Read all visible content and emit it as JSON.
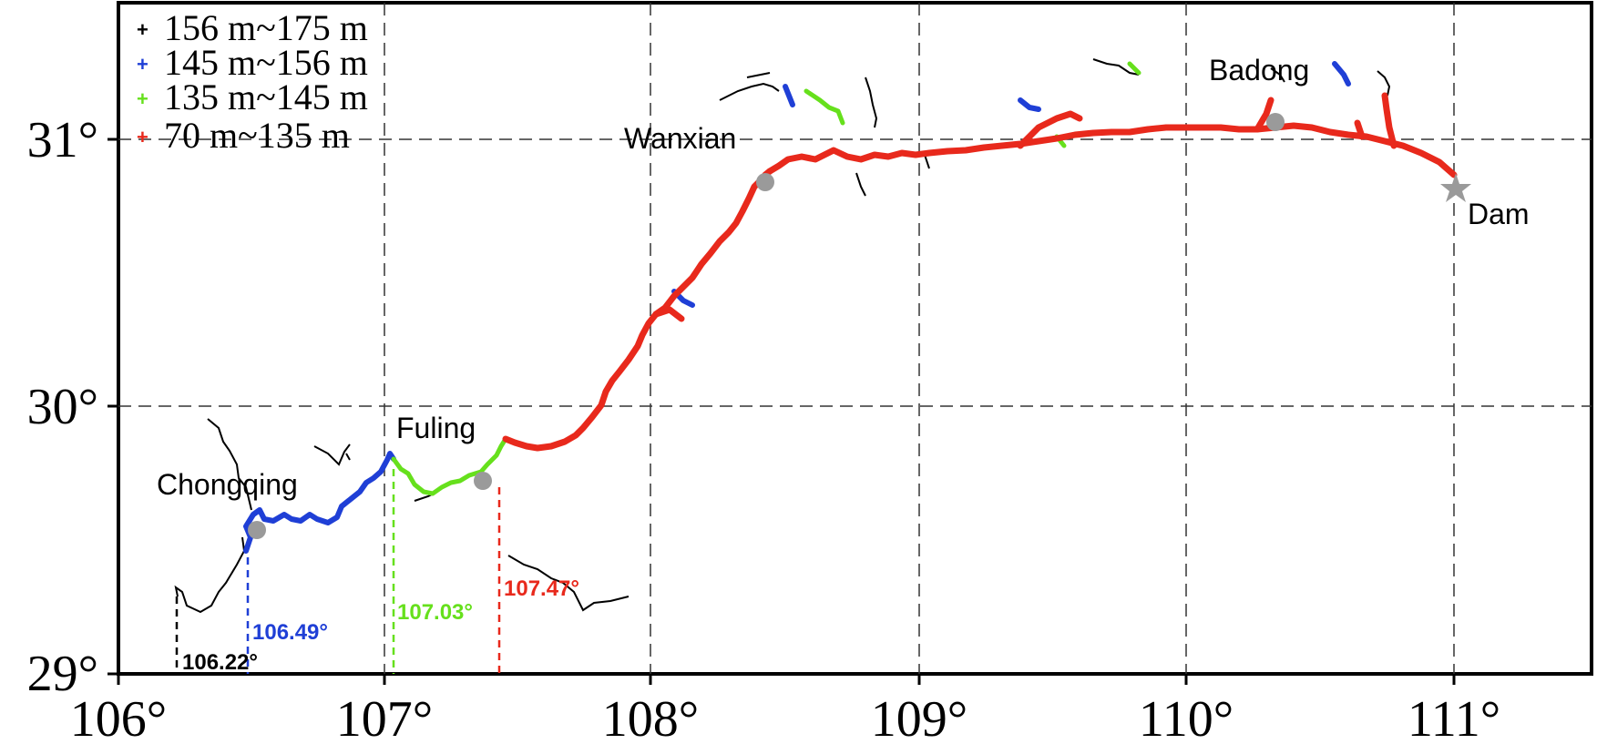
{
  "legend": [
    {
      "label": "156 m~175 m",
      "color": "#000000"
    },
    {
      "label": "145 m~156 m",
      "color": "#1f3fd6"
    },
    {
      "label": "135 m~145 m",
      "color": "#66e01c"
    },
    {
      "label": "70 m~135 m",
      "color": "#e8291c"
    }
  ],
  "x_ticks": [
    "106°",
    "107°",
    "108°",
    "109°",
    "110°",
    "111°"
  ],
  "y_ticks": [
    "31°",
    "30°",
    "29°"
  ],
  "cities": [
    {
      "name": "Chongqing",
      "marker": "circle"
    },
    {
      "name": "Fuling",
      "marker": "circle"
    },
    {
      "name": "Wanxian",
      "marker": "circle"
    },
    {
      "name": "Badong",
      "marker": "circle"
    },
    {
      "name": "Dam",
      "marker": "star"
    }
  ],
  "longitude_markers": [
    {
      "label": "106.22°",
      "color": "#000000"
    },
    {
      "label": "106.49°",
      "color": "#1f3fd6"
    },
    {
      "label": "107.03°",
      "color": "#66e01c"
    },
    {
      "label": "107.47°",
      "color": "#e8291c"
    }
  ],
  "colors": {
    "marker_gray": "#9a9a9a",
    "frame": "#000000"
  }
}
